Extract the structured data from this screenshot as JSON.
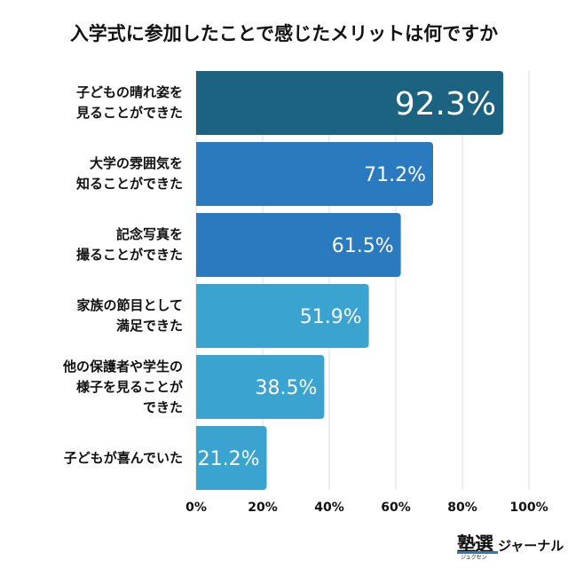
{
  "chart_data": {
    "type": "bar",
    "orientation": "horizontal",
    "title": "入学式に参加したことで感じたメリットは何ですか",
    "categories": [
      "子どもの晴れ姿を\n見ることができた",
      "大学の雰囲気を\n知ることができた",
      "記念写真を\n撮ることができた",
      "家族の節目として\n満足できた",
      "他の保護者や学生の\n様子を見ることが\nできた",
      "子どもが喜んでいた"
    ],
    "values": [
      92.3,
      71.2,
      61.5,
      51.9,
      38.5,
      21.2
    ],
    "data_labels": [
      "92.3%",
      "71.2%",
      "61.5%",
      "51.9%",
      "38.5%",
      "21.2%"
    ],
    "bar_colors": [
      "#1b6380",
      "#2a7abf",
      "#2a7abf",
      "#3aa3d0",
      "#3aa3d0",
      "#3aa3d0"
    ],
    "xlim": [
      0,
      100
    ],
    "xticks": [
      0,
      20,
      40,
      60,
      80,
      100
    ],
    "xtick_labels": [
      "0%",
      "20%",
      "40%",
      "60%",
      "80%",
      "100%"
    ],
    "grid": true,
    "xlabel": "",
    "ylabel": ""
  },
  "logo": {
    "main": "塾選",
    "ruby": "ジュクセン",
    "sub": "ジャーナル"
  }
}
